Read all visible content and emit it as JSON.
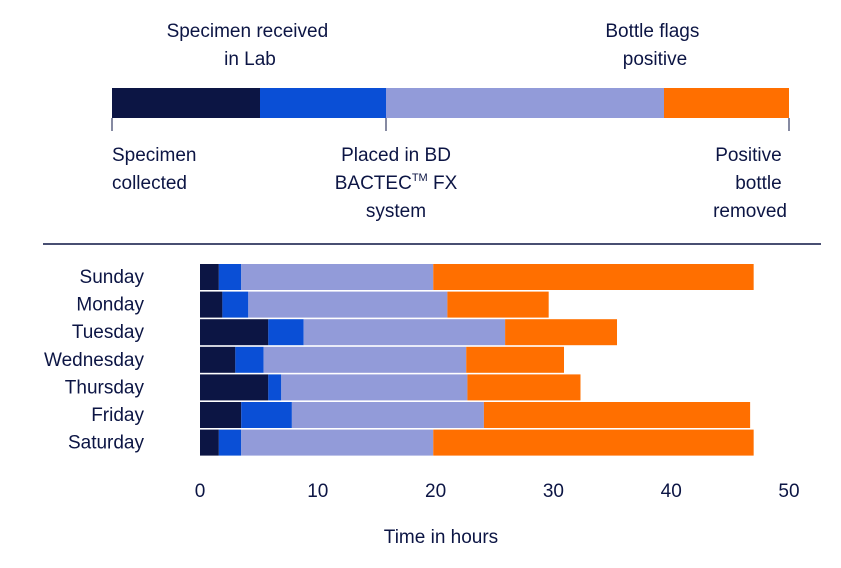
{
  "timeline": {
    "labels": {
      "specimen_received": [
        "Specimen received",
        "in Lab"
      ],
      "bottle_flags": [
        "Bottle flags",
        "positive"
      ],
      "specimen_collected": [
        "Specimen",
        "collected"
      ],
      "placed_in_bd": [
        "Placed in BD",
        "BACTEC",
        "TM",
        " FX",
        "system"
      ],
      "positive_removed": [
        "Positive",
        "bottle",
        "removed"
      ]
    }
  },
  "colors": {
    "stage1": "#0c1544",
    "stage2": "#0a4fd6",
    "stage3": "#929bd9",
    "stage4": "#ff6f00",
    "divider": "#0c1544"
  },
  "chart_data": {
    "type": "bar",
    "orientation": "horizontal",
    "stacked": true,
    "categories": [
      "Sunday",
      "Monday",
      "Tuesday",
      "Wednesday",
      "Thursday",
      "Friday",
      "Saturday"
    ],
    "series": [
      {
        "values": [
          1.6,
          1.9,
          5.8,
          3.0,
          5.8,
          3.5,
          1.6
        ]
      },
      {
        "values": [
          1.9,
          2.2,
          3.0,
          2.4,
          1.1,
          4.3,
          1.9
        ]
      },
      {
        "values": [
          16.3,
          16.9,
          17.1,
          17.2,
          15.8,
          16.3,
          16.3
        ]
      },
      {
        "values": [
          27.2,
          8.6,
          9.5,
          8.3,
          9.6,
          22.6,
          27.2
        ]
      }
    ],
    "xlim": [
      0,
      50
    ],
    "xticks": [
      0,
      10,
      20,
      30,
      40,
      50
    ],
    "xlabel": "Time in hours",
    "ylabel": "",
    "grid": false,
    "legend": "none"
  }
}
